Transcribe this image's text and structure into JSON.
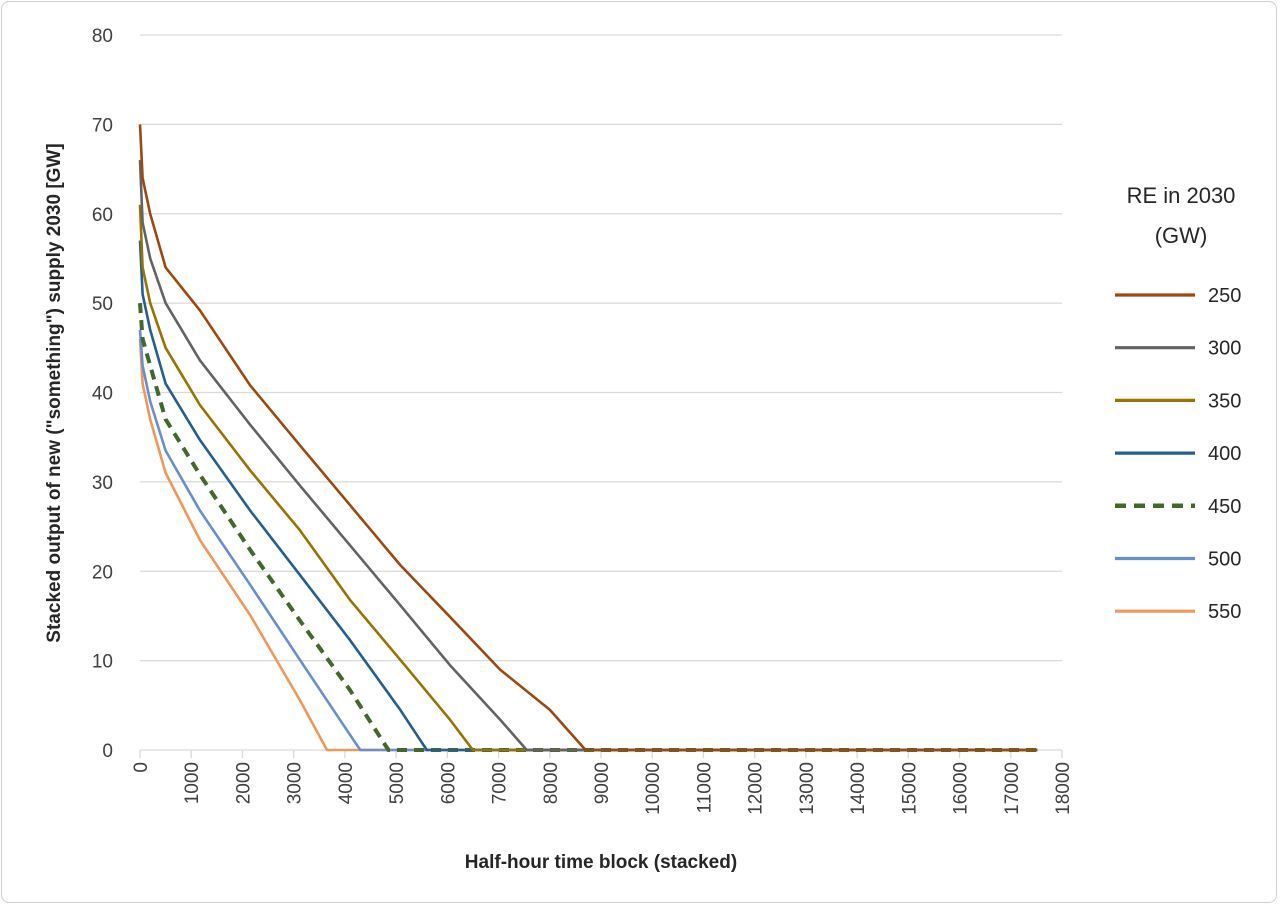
{
  "chart_data": {
    "type": "line",
    "title": "",
    "xlabel": "Half-hour time block (stacked)",
    "ylabel": "Stacked output of new (\"something\") supply 2030 [GW]",
    "xlim": [
      0,
      18000
    ],
    "ylim": [
      0,
      80
    ],
    "xticks": [
      "0",
      "1000",
      "2000",
      "3000",
      "4000",
      "5000",
      "6000",
      "7000",
      "8000",
      "9000",
      "10000",
      "11000",
      "12000",
      "13000",
      "14000",
      "15000",
      "16000",
      "17000",
      "18000"
    ],
    "yticks": [
      "0",
      "10",
      "20",
      "30",
      "40",
      "50",
      "60",
      "70",
      "80"
    ],
    "grid": "horizontal",
    "legend": {
      "title_lines": [
        "RE in 2030",
        "(GW)"
      ],
      "placement": "right"
    },
    "series": [
      {
        "name": "250",
        "color": "#9e480e",
        "dash": false,
        "x": [
          0,
          50,
          200,
          500,
          1170,
          2150,
          3120,
          4100,
          5080,
          6050,
          7030,
          8000,
          8700,
          17520
        ],
        "y": [
          70,
          64,
          60,
          54,
          49.2,
          40.8,
          34.1,
          27.4,
          20.7,
          14.9,
          9,
          4.5,
          0,
          0
        ]
      },
      {
        "name": "300",
        "color": "#636363",
        "dash": false,
        "x": [
          0,
          50,
          200,
          500,
          1170,
          2150,
          3120,
          4100,
          5080,
          6050,
          7030,
          7550,
          17520
        ],
        "y": [
          66,
          59,
          55,
          50,
          43.6,
          36.4,
          29.6,
          22.9,
          16.2,
          9.5,
          3.4,
          0,
          0
        ]
      },
      {
        "name": "350",
        "color": "#997300",
        "dash": false,
        "x": [
          0,
          50,
          200,
          500,
          1170,
          2150,
          3120,
          4100,
          5080,
          6050,
          6500,
          17520
        ],
        "y": [
          61,
          54,
          50,
          45,
          38.6,
          31.3,
          24.6,
          16.8,
          10.1,
          3.4,
          0,
          0
        ]
      },
      {
        "name": "400",
        "color": "#255e91",
        "dash": false,
        "x": [
          0,
          50,
          200,
          500,
          1170,
          2150,
          3120,
          4100,
          5080,
          5600,
          17520
        ],
        "y": [
          57,
          51,
          47,
          41,
          34.7,
          26.8,
          19.6,
          12.3,
          4.5,
          0,
          0
        ]
      },
      {
        "name": "450",
        "color": "#43682b",
        "dash": true,
        "x": [
          0,
          50,
          200,
          500,
          1170,
          2150,
          3120,
          4100,
          4850,
          17520
        ],
        "y": [
          50,
          46,
          43,
          37,
          30.8,
          22.4,
          14.5,
          6.7,
          0,
          0
        ]
      },
      {
        "name": "500",
        "color": "#698ed0",
        "dash": false,
        "x": [
          0,
          50,
          200,
          500,
          1170,
          2150,
          3120,
          4100,
          4300,
          17520
        ],
        "y": [
          47,
          43,
          39,
          33.5,
          26.8,
          18.5,
          10.1,
          1.7,
          0,
          0
        ]
      },
      {
        "name": "550",
        "color": "#f1975a",
        "dash": false,
        "x": [
          0,
          50,
          200,
          500,
          1170,
          2150,
          3120,
          3650,
          17520
        ],
        "y": [
          46,
          41,
          37,
          31,
          23.5,
          15.1,
          5.6,
          0,
          0
        ]
      }
    ]
  }
}
